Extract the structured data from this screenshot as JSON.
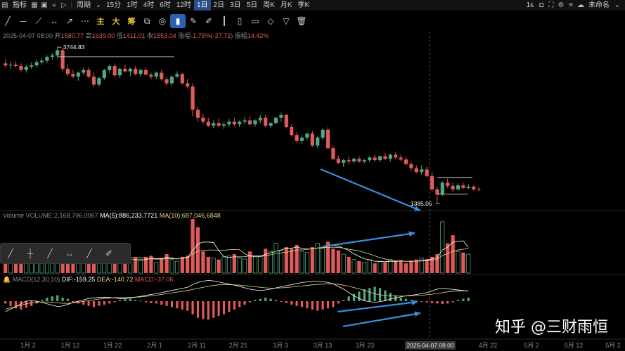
{
  "toolbar": {
    "indicators_label": "指标",
    "period_label": "周期",
    "periods": [
      "15分",
      "1时",
      "4时",
      "6时",
      "12时",
      "1日",
      "2日",
      "3日",
      "5日",
      "周K",
      "月K",
      "季K"
    ],
    "active_period": "1日",
    "interval_label": "1s",
    "workspace_name": "未命名"
  },
  "drawbar": {
    "chip_labels": [
      "主",
      "大",
      "筹"
    ]
  },
  "info_line": {
    "date": "2025-04-07 08:00",
    "open_label": "开",
    "open": "1580.77",
    "high_label": "高",
    "high": "1639.00",
    "low_label": "低",
    "low": "1411.01",
    "close_label": "收",
    "close": "1553.04",
    "change_label": "涨幅",
    "change": "-1.75%(-27.72)",
    "amplitude_label": "振幅",
    "amplitude": "14.42%"
  },
  "volume_line": {
    "label": "Volume",
    "volume": "VOLUME:2,168,796.0067",
    "ma5": "MA(5):886,233.7721",
    "ma10": "MA(10):687,046.6848"
  },
  "macd_line": {
    "label": "MACD(12,30,10)",
    "dif": "DIF:-159.25",
    "dea": "DEA:-140.72",
    "macd": "MACD:-37.06"
  },
  "watermark": "知乎 @三财雨恒",
  "crosshair_date": "2025-04-07 08:00",
  "colors": {
    "up": "#4fa882",
    "down": "#e05a5a",
    "background": "#000000",
    "ma5": "#ffffff",
    "ma10": "#e8d58a",
    "arrow": "#3b8de0",
    "active": "#2a4d8a"
  },
  "chart_data": {
    "type": "candlestick",
    "xaxis_ticks": [
      "1月 2",
      "1月 12",
      "1月 22",
      "2月 1",
      "2月 11",
      "2月 21",
      "3月 3",
      "3月 13",
      "3月 23",
      "4月 22",
      "5月 2",
      "5月 12",
      "5月 2"
    ],
    "annotations": {
      "high_label": "3744.83",
      "low_label": "1385.05"
    },
    "candles": [
      [
        3500,
        3560,
        3440,
        3470
      ],
      [
        3470,
        3520,
        3420,
        3480
      ],
      [
        3480,
        3530,
        3440,
        3460
      ],
      [
        3460,
        3500,
        3380,
        3400
      ],
      [
        3400,
        3480,
        3360,
        3450
      ],
      [
        3450,
        3520,
        3420,
        3470
      ],
      [
        3470,
        3560,
        3440,
        3520
      ],
      [
        3520,
        3580,
        3480,
        3540
      ],
      [
        3540,
        3620,
        3500,
        3600
      ],
      [
        3600,
        3660,
        3560,
        3620
      ],
      [
        3620,
        3745,
        3580,
        3700
      ],
      [
        3700,
        3720,
        3380,
        3420
      ],
      [
        3420,
        3480,
        3300,
        3340
      ],
      [
        3340,
        3400,
        3280,
        3300
      ],
      [
        3300,
        3380,
        3240,
        3360
      ],
      [
        3360,
        3440,
        3320,
        3400
      ],
      [
        3400,
        3440,
        3280,
        3300
      ],
      [
        3300,
        3360,
        3140,
        3180
      ],
      [
        3180,
        3300,
        3150,
        3280
      ],
      [
        3280,
        3420,
        3250,
        3400
      ],
      [
        3400,
        3480,
        3360,
        3460
      ],
      [
        3460,
        3500,
        3300,
        3320
      ],
      [
        3320,
        3440,
        3280,
        3420
      ],
      [
        3420,
        3480,
        3360,
        3380
      ],
      [
        3380,
        3440,
        3300,
        3420
      ],
      [
        3420,
        3460,
        3320,
        3340
      ],
      [
        3340,
        3420,
        3300,
        3400
      ],
      [
        3400,
        3440,
        3320,
        3330
      ],
      [
        3330,
        3360,
        3260,
        3300
      ],
      [
        3300,
        3380,
        3260,
        3360
      ],
      [
        3360,
        3400,
        3240,
        3260
      ],
      [
        3260,
        3300,
        3160,
        3200
      ],
      [
        3200,
        3320,
        3160,
        3300
      ],
      [
        3300,
        3380,
        3280,
        3340
      ],
      [
        3340,
        3360,
        3180,
        3200
      ],
      [
        3200,
        3260,
        3120,
        3150
      ],
      [
        3150,
        3200,
        2700,
        2800
      ],
      [
        2800,
        2850,
        2620,
        2680
      ],
      [
        2680,
        2740,
        2580,
        2620
      ],
      [
        2620,
        2680,
        2540,
        2560
      ],
      [
        2560,
        2640,
        2520,
        2600
      ],
      [
        2600,
        2660,
        2540,
        2560
      ],
      [
        2560,
        2620,
        2510,
        2580
      ],
      [
        2580,
        2660,
        2540,
        2620
      ],
      [
        2620,
        2680,
        2560,
        2580
      ],
      [
        2580,
        2640,
        2540,
        2620
      ],
      [
        2620,
        2690,
        2580,
        2640
      ],
      [
        2640,
        2700,
        2560,
        2580
      ],
      [
        2580,
        2660,
        2540,
        2640
      ],
      [
        2640,
        2720,
        2600,
        2680
      ],
      [
        2680,
        2720,
        2540,
        2560
      ],
      [
        2560,
        2620,
        2520,
        2600
      ],
      [
        2600,
        2700,
        2580,
        2680
      ],
      [
        2680,
        2760,
        2620,
        2720
      ],
      [
        2720,
        2740,
        2520,
        2540
      ],
      [
        2540,
        2580,
        2400,
        2420
      ],
      [
        2420,
        2460,
        2300,
        2330
      ],
      [
        2330,
        2420,
        2290,
        2380
      ],
      [
        2380,
        2460,
        2340,
        2440
      ],
      [
        2440,
        2480,
        2240,
        2260
      ],
      [
        2260,
        2400,
        2220,
        2380
      ],
      [
        2380,
        2520,
        2340,
        2500
      ],
      [
        2500,
        2540,
        2200,
        2220
      ],
      [
        2220,
        2260,
        2040,
        2060
      ],
      [
        2060,
        2110,
        1980,
        2000
      ],
      [
        2000,
        2060,
        1940,
        2040
      ],
      [
        2040,
        2090,
        1980,
        2020
      ],
      [
        2020,
        2080,
        1990,
        2060
      ],
      [
        2060,
        2100,
        2000,
        2020
      ],
      [
        2020,
        2060,
        1990,
        2040
      ],
      [
        2040,
        2100,
        2010,
        2080
      ],
      [
        2080,
        2120,
        2020,
        2040
      ],
      [
        2040,
        2110,
        2010,
        2100
      ],
      [
        2100,
        2150,
        2040,
        2060
      ],
      [
        2060,
        2140,
        2020,
        2120
      ],
      [
        2120,
        2160,
        2060,
        2080
      ],
      [
        2080,
        2120,
        2030,
        2050
      ],
      [
        2050,
        2090,
        1960,
        1980
      ],
      [
        1980,
        2020,
        1880,
        1920
      ],
      [
        1920,
        1960,
        1840,
        1860
      ],
      [
        1860,
        1960,
        1820,
        1900
      ],
      [
        1900,
        1940,
        1780,
        1800
      ],
      [
        1800,
        1860,
        1560,
        1600
      ],
      [
        1600,
        1640,
        1385,
        1520
      ],
      [
        1520,
        1720,
        1500,
        1700
      ],
      [
        1700,
        1760,
        1620,
        1650
      ],
      [
        1650,
        1700,
        1560,
        1600
      ],
      [
        1600,
        1690,
        1580,
        1660
      ],
      [
        1660,
        1700,
        1600,
        1620
      ],
      [
        1620,
        1680,
        1600,
        1640
      ],
      [
        1640,
        1660,
        1580,
        1600
      ],
      [
        1600,
        1640,
        1570,
        1590
      ]
    ],
    "volume": [
      0.3,
      0.2,
      0.18,
      0.25,
      0.22,
      0.2,
      0.22,
      0.28,
      0.3,
      0.25,
      0.35,
      0.4,
      0.3,
      0.25,
      0.22,
      0.2,
      0.3,
      0.45,
      0.35,
      0.28,
      0.25,
      0.3,
      0.25,
      0.22,
      0.2,
      0.28,
      0.25,
      0.3,
      0.32,
      0.2,
      0.28,
      0.35,
      0.25,
      0.22,
      0.3,
      0.32,
      1.0,
      0.85,
      0.4,
      0.3,
      0.28,
      0.25,
      0.3,
      0.32,
      0.35,
      0.28,
      0.26,
      0.4,
      0.3,
      0.32,
      0.45,
      0.4,
      0.55,
      0.42,
      0.48,
      0.45,
      0.52,
      0.4,
      0.38,
      0.48,
      0.55,
      0.5,
      0.58,
      0.45,
      0.42,
      0.35,
      0.3,
      0.25,
      0.22,
      0.2,
      0.25,
      0.18,
      0.22,
      0.2,
      0.25,
      0.22,
      0.24,
      0.18,
      0.22,
      0.25,
      0.28,
      0.26,
      0.3,
      0.35,
      0.95,
      0.55,
      0.7,
      0.4,
      0.38,
      0.35
    ],
    "macd_hist": [
      -0.1,
      -0.2,
      -0.3,
      -0.35,
      -0.28,
      -0.2,
      -0.1,
      0.05,
      0.15,
      0.2,
      0.25,
      0.15,
      0.1,
      -0.05,
      -0.1,
      -0.15,
      -0.2,
      -0.25,
      -0.2,
      -0.15,
      -0.1,
      -0.05,
      0.05,
      0.08,
      0.1,
      0.05,
      0.02,
      -0.05,
      -0.08,
      -0.1,
      -0.15,
      -0.2,
      -0.25,
      -0.3,
      -0.35,
      -0.4,
      -0.55,
      -0.7,
      -0.75,
      -0.78,
      -0.7,
      -0.62,
      -0.55,
      -0.45,
      -0.35,
      -0.25,
      -0.15,
      -0.05,
      0.05,
      0.1,
      0.15,
      0.1,
      0.05,
      -0.02,
      -0.08,
      -0.15,
      -0.2,
      -0.25,
      -0.3,
      -0.35,
      -0.4,
      -0.35,
      -0.3,
      -0.25,
      -0.1,
      0.05,
      0.2,
      0.3,
      0.4,
      0.5,
      0.55,
      0.6,
      0.55,
      0.45,
      0.35,
      0.25,
      0.15,
      0.1,
      0.05,
      0.02,
      -0.02,
      -0.05,
      -0.08,
      -0.1,
      -0.12,
      -0.1,
      -0.05,
      0.05,
      0.1,
      0.15
    ],
    "dif": [
      0.1,
      0.0,
      -0.1,
      -0.2,
      -0.3,
      -0.32,
      -0.3,
      -0.25,
      -0.2,
      -0.15,
      -0.1,
      -0.12,
      -0.18,
      -0.25,
      -0.3,
      -0.35,
      -0.4,
      -0.42,
      -0.44,
      -0.45,
      -0.44,
      -0.42,
      -0.4,
      -0.4,
      -0.42,
      -0.45,
      -0.48,
      -0.52,
      -0.55,
      -0.58,
      -0.62,
      -0.66,
      -0.7,
      -0.74,
      -0.78,
      -0.82,
      -0.92,
      -1.0,
      -1.05,
      -1.08,
      -1.06,
      -1.02,
      -0.98,
      -0.94,
      -0.9,
      -0.85,
      -0.8,
      -0.75,
      -0.72,
      -0.7,
      -0.72,
      -0.75,
      -0.8,
      -0.84,
      -0.88,
      -0.92,
      -0.96,
      -1.0,
      -1.02,
      -1.04,
      -1.05,
      -1.03,
      -1.0,
      -0.95,
      -0.85,
      -0.75,
      -0.62,
      -0.5,
      -0.4,
      -0.32,
      -0.28,
      -0.26,
      -0.28,
      -0.32,
      -0.38,
      -0.42,
      -0.46,
      -0.5,
      -0.52,
      -0.55,
      -0.58,
      -0.62,
      -0.68,
      -0.75,
      -0.78,
      -0.76,
      -0.74,
      -0.72,
      -0.7,
      -0.68
    ],
    "dea": [
      0.0,
      -0.05,
      -0.1,
      -0.15,
      -0.2,
      -0.24,
      -0.26,
      -0.27,
      -0.27,
      -0.26,
      -0.24,
      -0.22,
      -0.22,
      -0.24,
      -0.26,
      -0.29,
      -0.32,
      -0.35,
      -0.38,
      -0.4,
      -0.42,
      -0.43,
      -0.43,
      -0.43,
      -0.44,
      -0.45,
      -0.46,
      -0.48,
      -0.5,
      -0.52,
      -0.55,
      -0.58,
      -0.61,
      -0.64,
      -0.67,
      -0.7,
      -0.74,
      -0.78,
      -0.82,
      -0.86,
      -0.89,
      -0.91,
      -0.92,
      -0.92,
      -0.91,
      -0.9,
      -0.88,
      -0.86,
      -0.84,
      -0.82,
      -0.8,
      -0.79,
      -0.79,
      -0.8,
      -0.81,
      -0.83,
      -0.85,
      -0.87,
      -0.89,
      -0.91,
      -0.93,
      -0.94,
      -0.95,
      -0.95,
      -0.93,
      -0.9,
      -0.86,
      -0.81,
      -0.76,
      -0.7,
      -0.64,
      -0.58,
      -0.54,
      -0.51,
      -0.5,
      -0.49,
      -0.49,
      -0.49,
      -0.5,
      -0.51,
      -0.52,
      -0.54,
      -0.56,
      -0.59,
      -0.62,
      -0.65,
      -0.67,
      -0.68,
      -0.69,
      -0.69
    ]
  }
}
